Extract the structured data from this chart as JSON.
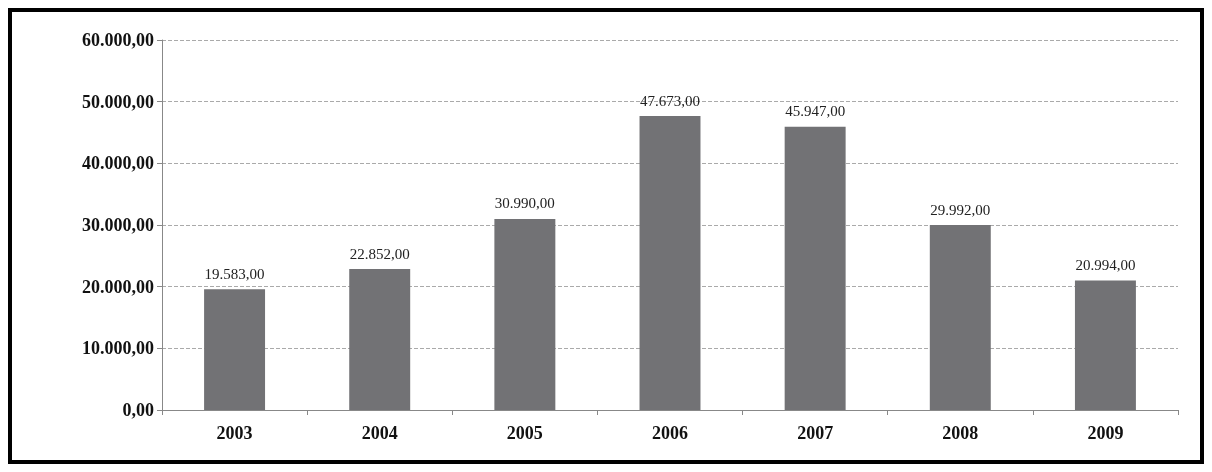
{
  "chart_data": {
    "type": "bar",
    "categories": [
      "2003",
      "2004",
      "2005",
      "2006",
      "2007",
      "2008",
      "2009"
    ],
    "values": [
      19583,
      22852,
      30990,
      47673,
      45947,
      29992,
      20994
    ],
    "value_labels": [
      "19.583,00",
      "22.852,00",
      "30.990,00",
      "47.673,00",
      "45.947,00",
      "29.992,00",
      "20.994,00"
    ],
    "color": "#727275",
    "ylim": [
      0,
      60000
    ],
    "yticks": [
      {
        "value": 0,
        "label": "0,00"
      },
      {
        "value": 10000,
        "label": "10.000,00"
      },
      {
        "value": 20000,
        "label": "20.000,00"
      },
      {
        "value": 30000,
        "label": "30.000,00"
      },
      {
        "value": 40000,
        "label": "40.000,00"
      },
      {
        "value": 50000,
        "label": "50.000,00"
      },
      {
        "value": 60000,
        "label": "60.000,00"
      }
    ],
    "grid": "y"
  }
}
